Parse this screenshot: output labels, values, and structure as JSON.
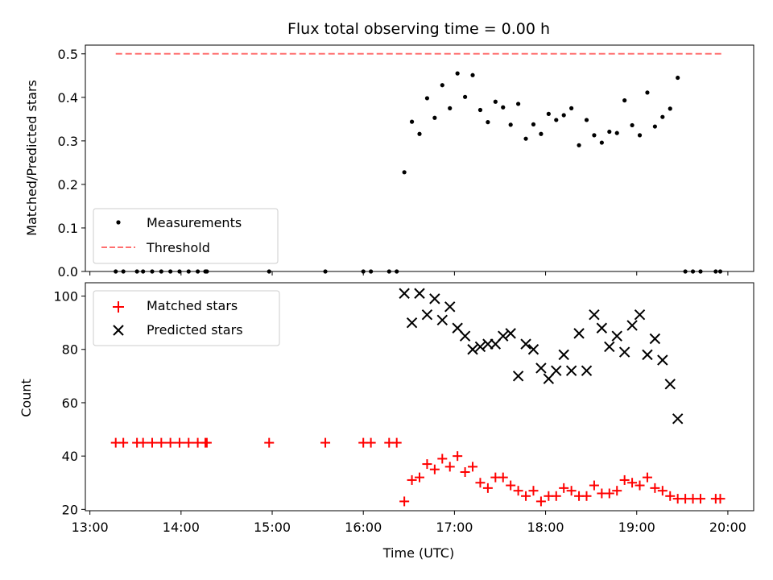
{
  "title": "Flux total observing time = 0.00 h",
  "xlabel": "Time (UTC)",
  "colors": {
    "black": "#000000",
    "red": "#ff0000",
    "threshold": "#ff7070"
  },
  "chart_data": [
    {
      "type": "scatter",
      "panel": "top",
      "title": "Flux total observing time = 0.00 h",
      "ylabel": "Matched/Predicted stars",
      "xlabel": "",
      "xlim": [
        "12:57",
        "20:17"
      ],
      "ylim": [
        0,
        0.52
      ],
      "yticks": [
        0.0,
        0.1,
        0.2,
        0.3,
        0.4,
        0.5
      ],
      "ytick_labels": [
        "0.0",
        "0.1",
        "0.2",
        "0.3",
        "0.4",
        "0.5"
      ],
      "legend": {
        "placement": "lower-left",
        "entries": [
          "Measurements",
          "Threshold"
        ]
      },
      "series": [
        {
          "name": "Measurements",
          "marker": "dot",
          "color": "#000000",
          "points": [
            [
              "13:17",
              0.0
            ],
            [
              "13:22",
              0.0
            ],
            [
              "13:31",
              0.0
            ],
            [
              "13:35",
              0.0
            ],
            [
              "13:41",
              0.0
            ],
            [
              "13:47",
              0.0
            ],
            [
              "13:53",
              0.0
            ],
            [
              "13:59",
              0.0
            ],
            [
              "14:05",
              0.0
            ],
            [
              "14:11",
              0.0
            ],
            [
              "14:16",
              0.0
            ],
            [
              "14:17",
              0.0
            ],
            [
              "14:58",
              0.0
            ],
            [
              "15:35",
              0.0
            ],
            [
              "16:00",
              0.0
            ],
            [
              "16:05",
              0.0
            ],
            [
              "16:17",
              0.0
            ],
            [
              "16:22",
              0.0
            ],
            [
              "16:27",
              0.228
            ],
            [
              "16:32",
              0.344
            ],
            [
              "16:37",
              0.316
            ],
            [
              "16:42",
              0.398
            ],
            [
              "16:47",
              0.353
            ],
            [
              "16:52",
              0.428
            ],
            [
              "16:57",
              0.375
            ],
            [
              "17:02",
              0.455
            ],
            [
              "17:07",
              0.401
            ],
            [
              "17:12",
              0.451
            ],
            [
              "17:17",
              0.371
            ],
            [
              "17:22",
              0.343
            ],
            [
              "17:27",
              0.39
            ],
            [
              "17:32",
              0.377
            ],
            [
              "17:37",
              0.337
            ],
            [
              "17:42",
              0.385
            ],
            [
              "17:47",
              0.305
            ],
            [
              "17:52",
              0.338
            ],
            [
              "17:57",
              0.316
            ],
            [
              "18:02",
              0.362
            ],
            [
              "18:07",
              0.348
            ],
            [
              "18:12",
              0.359
            ],
            [
              "18:17",
              0.375
            ],
            [
              "18:22",
              0.29
            ],
            [
              "18:27",
              0.348
            ],
            [
              "18:32",
              0.313
            ],
            [
              "18:37",
              0.296
            ],
            [
              "18:42",
              0.321
            ],
            [
              "18:47",
              0.318
            ],
            [
              "18:52",
              0.393
            ],
            [
              "18:57",
              0.336
            ],
            [
              "19:02",
              0.313
            ],
            [
              "19:07",
              0.411
            ],
            [
              "19:12",
              0.333
            ],
            [
              "19:17",
              0.355
            ],
            [
              "19:22",
              0.374
            ],
            [
              "19:27",
              0.445
            ],
            [
              "19:32",
              0.0
            ],
            [
              "19:37",
              0.0
            ],
            [
              "19:42",
              0.0
            ],
            [
              "19:52",
              0.0
            ],
            [
              "19:55",
              0.0
            ]
          ]
        },
        {
          "name": "Threshold",
          "marker": "dashed-line",
          "color": "#ff7070",
          "points": [
            [
              "13:17",
              0.5
            ],
            [
              "19:57",
              0.5
            ]
          ]
        }
      ]
    },
    {
      "type": "scatter",
      "panel": "bottom",
      "xlabel": "Time (UTC)",
      "ylabel": "Count",
      "xlim": [
        "12:57",
        "20:17"
      ],
      "ylim": [
        19.5,
        105
      ],
      "xticks": [
        "13:00",
        "14:00",
        "15:00",
        "16:00",
        "17:00",
        "18:00",
        "19:00",
        "20:00"
      ],
      "xtick_labels": [
        "13:00",
        "14:00",
        "15:00",
        "16:00",
        "17:00",
        "18:00",
        "19:00",
        "20:00"
      ],
      "yticks": [
        20,
        40,
        60,
        80,
        100
      ],
      "ytick_labels": [
        "20",
        "40",
        "60",
        "80",
        "100"
      ],
      "legend": {
        "placement": "upper-left",
        "entries": [
          "Matched stars",
          "Predicted stars"
        ]
      },
      "series": [
        {
          "name": "Matched stars",
          "marker": "plus",
          "color": "#ff0000",
          "points": [
            [
              "13:17",
              45
            ],
            [
              "13:22",
              45
            ],
            [
              "13:31",
              45
            ],
            [
              "13:35",
              45
            ],
            [
              "13:41",
              45
            ],
            [
              "13:47",
              45
            ],
            [
              "13:53",
              45
            ],
            [
              "13:59",
              45
            ],
            [
              "14:05",
              45
            ],
            [
              "14:11",
              45
            ],
            [
              "14:16",
              45
            ],
            [
              "14:17",
              45
            ],
            [
              "14:58",
              45
            ],
            [
              "15:35",
              45
            ],
            [
              "16:00",
              45
            ],
            [
              "16:05",
              45
            ],
            [
              "16:17",
              45
            ],
            [
              "16:22",
              45
            ],
            [
              "16:27",
              23
            ],
            [
              "16:32",
              31
            ],
            [
              "16:37",
              32
            ],
            [
              "16:42",
              37
            ],
            [
              "16:47",
              35
            ],
            [
              "16:52",
              39
            ],
            [
              "16:57",
              36
            ],
            [
              "17:02",
              40
            ],
            [
              "17:07",
              34
            ],
            [
              "17:12",
              36
            ],
            [
              "17:17",
              30
            ],
            [
              "17:22",
              28
            ],
            [
              "17:27",
              32
            ],
            [
              "17:32",
              32
            ],
            [
              "17:37",
              29
            ],
            [
              "17:42",
              27
            ],
            [
              "17:47",
              25
            ],
            [
              "17:52",
              27
            ],
            [
              "17:57",
              23
            ],
            [
              "18:02",
              25
            ],
            [
              "18:07",
              25
            ],
            [
              "18:12",
              28
            ],
            [
              "18:17",
              27
            ],
            [
              "18:22",
              25
            ],
            [
              "18:27",
              25
            ],
            [
              "18:32",
              29
            ],
            [
              "18:37",
              26
            ],
            [
              "18:42",
              26
            ],
            [
              "18:47",
              27
            ],
            [
              "18:52",
              31
            ],
            [
              "18:57",
              30
            ],
            [
              "19:02",
              29
            ],
            [
              "19:07",
              32
            ],
            [
              "19:12",
              28
            ],
            [
              "19:17",
              27
            ],
            [
              "19:22",
              25
            ],
            [
              "19:27",
              24
            ],
            [
              "19:32",
              24
            ],
            [
              "19:37",
              24
            ],
            [
              "19:42",
              24
            ],
            [
              "19:52",
              24
            ],
            [
              "19:55",
              24
            ]
          ]
        },
        {
          "name": "Predicted stars",
          "marker": "x",
          "color": "#000000",
          "points": [
            [
              "16:27",
              101
            ],
            [
              "16:32",
              90
            ],
            [
              "16:37",
              101
            ],
            [
              "16:42",
              93
            ],
            [
              "16:47",
              99
            ],
            [
              "16:52",
              91
            ],
            [
              "16:57",
              96
            ],
            [
              "17:02",
              88
            ],
            [
              "17:07",
              85
            ],
            [
              "17:12",
              80
            ],
            [
              "17:17",
              81
            ],
            [
              "17:22",
              82
            ],
            [
              "17:27",
              82
            ],
            [
              "17:32",
              85
            ],
            [
              "17:37",
              86
            ],
            [
              "17:42",
              70
            ],
            [
              "17:47",
              82
            ],
            [
              "17:52",
              80
            ],
            [
              "17:57",
              73
            ],
            [
              "18:02",
              69
            ],
            [
              "18:07",
              72
            ],
            [
              "18:12",
              78
            ],
            [
              "18:17",
              72
            ],
            [
              "18:22",
              86
            ],
            [
              "18:27",
              72
            ],
            [
              "18:32",
              93
            ],
            [
              "18:37",
              88
            ],
            [
              "18:42",
              81
            ],
            [
              "18:47",
              85
            ],
            [
              "18:52",
              79
            ],
            [
              "18:57",
              89
            ],
            [
              "19:02",
              93
            ],
            [
              "19:07",
              78
            ],
            [
              "19:12",
              84
            ],
            [
              "19:17",
              76
            ],
            [
              "19:22",
              67
            ],
            [
              "19:27",
              54
            ]
          ]
        }
      ]
    }
  ]
}
